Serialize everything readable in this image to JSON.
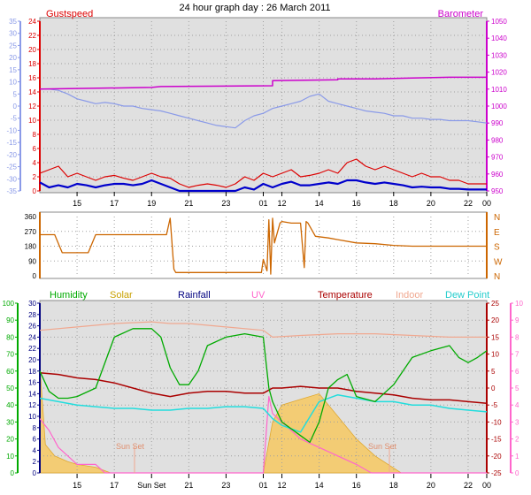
{
  "title": "24 hour graph day : 26 March 2011",
  "colors": {
    "gust": "#dd0000",
    "wind": "#0000cc",
    "baro": "#cc00cc",
    "temp_blue": "#8a9ae8",
    "dir": "#cc6600",
    "humidity": "#00aa00",
    "solar": "#f6c860",
    "rainfall": "#000080",
    "uv": "#ff66cc",
    "temperature": "#aa0000",
    "indoor": "#f0a890",
    "dew": "#22dddd",
    "plot_bg": "#e0e0e0",
    "grid": "#a0a0a0"
  },
  "chart_data": [
    {
      "type": "line",
      "name": "wind-baro-panel",
      "labels": {
        "left": "Gustspeed",
        "right": "Barometer"
      },
      "x_ticks": [
        "15",
        "17",
        "19",
        "21",
        "23",
        "01",
        "12",
        "14",
        "16",
        "18",
        "20",
        "22",
        "00"
      ],
      "y_left_ticks": [
        "0",
        "2",
        "4",
        "6",
        "8",
        "10",
        "12",
        "14",
        "16",
        "18",
        "20",
        "22",
        "24"
      ],
      "y_outer_ticks": [
        "-35",
        "-30",
        "-25",
        "-20",
        "-15",
        "-10",
        "-5",
        "0",
        "5",
        "10",
        "15",
        "20",
        "25",
        "30",
        "35"
      ],
      "y_right_ticks": [
        "950",
        "960",
        "970",
        "980",
        "990",
        "1000",
        "1010",
        "1020",
        "1030",
        "1040",
        "1050"
      ],
      "y_left_range": [
        0,
        25
      ],
      "y_outer_range": [
        -35,
        35
      ],
      "y_right_range": [
        950,
        1050
      ],
      "series": {
        "gust": {
          "x": [
            0,
            0.5,
            1,
            1.5,
            2,
            2.5,
            3,
            3.5,
            4,
            4.5,
            5,
            5.5,
            6,
            6.5,
            7,
            7.5,
            8,
            8.5,
            9,
            9.5,
            10,
            10.5,
            11,
            11.5,
            12,
            12.5,
            13,
            13.5,
            14,
            14.5,
            15,
            15.5,
            16,
            16.5,
            17,
            17.5,
            18,
            18.5,
            19,
            19.5,
            20,
            20.5,
            21,
            21.5,
            22,
            22.5,
            23,
            23.5,
            24
          ],
          "y": [
            2.5,
            3,
            3.5,
            2,
            2.5,
            2,
            1.5,
            2,
            2.2,
            1.8,
            1.5,
            2,
            2.5,
            2,
            1.8,
            1,
            0.5,
            0.8,
            1,
            0.8,
            0.5,
            1,
            2,
            1.5,
            2.5,
            2,
            2.5,
            3,
            2,
            2.2,
            2.5,
            3,
            2.5,
            4,
            4.5,
            3.5,
            3,
            3.5,
            3,
            2.5,
            2,
            2.5,
            2,
            2,
            1.5,
            1.5,
            1,
            1,
            1
          ]
        },
        "wind": {
          "x": [
            0,
            0.5,
            1,
            1.5,
            2,
            2.5,
            3,
            3.5,
            4,
            4.5,
            5,
            5.5,
            6,
            6.5,
            7,
            7.5,
            8,
            8.5,
            9,
            9.5,
            10,
            10.5,
            11,
            11.5,
            12,
            12.5,
            13,
            13.5,
            14,
            14.5,
            15,
            15.5,
            16,
            16.5,
            17,
            17.5,
            18,
            18.5,
            19,
            19.5,
            20,
            20.5,
            21,
            21.5,
            22,
            22.5,
            23,
            23.5,
            24
          ],
          "y": [
            1.2,
            0.5,
            0.8,
            0.5,
            1,
            0.8,
            0.5,
            0.8,
            1,
            1,
            0.8,
            1,
            1.5,
            1,
            0.5,
            0,
            0,
            0,
            0,
            0,
            0,
            0,
            0.5,
            0.2,
            1,
            0.5,
            1,
            1.3,
            0.8,
            0.8,
            1,
            1.2,
            1,
            1.5,
            1.5,
            1.2,
            1,
            1.2,
            1,
            0.8,
            0.5,
            0.6,
            0.5,
            0.5,
            0.3,
            0.3,
            0.2,
            0.2,
            0.2
          ]
        },
        "temperature": {
          "x": [
            0,
            0.5,
            1,
            1.5,
            2,
            2.5,
            3,
            3.5,
            4,
            4.5,
            5,
            5.5,
            6,
            6.5,
            7,
            7.5,
            8,
            8.5,
            9,
            9.5,
            10,
            10.5,
            11,
            11.5,
            12,
            12.5,
            13,
            13.5,
            14,
            14.5,
            15,
            15.5,
            16,
            16.5,
            17,
            17.5,
            18,
            18.5,
            19,
            19.5,
            20,
            20.5,
            21,
            21.5,
            22,
            22.5,
            23,
            23.5,
            24
          ],
          "y": [
            7,
            7,
            6.5,
            5,
            3,
            2,
            1,
            1.5,
            1,
            0,
            0,
            -1,
            -1.5,
            -2,
            -3,
            -4,
            -5,
            -6,
            -7,
            -8,
            -8.5,
            -9,
            -6,
            -4,
            -3,
            -1,
            0,
            1,
            2,
            4,
            5,
            2,
            1,
            0,
            -1,
            -2,
            -2.5,
            -3,
            -4,
            -4,
            -5,
            -5,
            -5.5,
            -5.5,
            -6,
            -6,
            -6,
            -6.5,
            -7
          ]
        },
        "barometer": {
          "x": [
            0,
            6,
            6.5,
            12.5,
            12.5,
            16,
            16,
            18,
            20,
            22,
            24
          ],
          "y": [
            1010,
            1011,
            1011.5,
            1012,
            1015,
            1015.5,
            1016,
            1016,
            1016.5,
            1017,
            1017
          ]
        }
      }
    },
    {
      "type": "line",
      "name": "wind-direction-panel",
      "y_left_ticks": [
        "0",
        "90",
        "180",
        "270",
        "360"
      ],
      "y_right_ticks": [
        "N",
        "W",
        "S",
        "E",
        "N"
      ],
      "y_range": [
        0,
        360
      ],
      "series": {
        "direction": {
          "x": [
            0,
            0.8,
            1.2,
            2.6,
            3,
            3.5,
            3.5,
            4.2,
            6,
            6.8,
            7,
            7.2,
            7.3,
            8,
            9,
            10,
            11,
            11.9,
            12,
            12.2,
            12.3,
            12.4,
            12.5,
            12.6,
            12.9,
            13,
            13.5,
            14,
            14.2,
            14.3,
            14.4,
            14.8,
            15.5,
            16,
            17,
            18,
            19,
            20,
            21,
            22,
            23,
            24
          ],
          "y": [
            250,
            250,
            140,
            140,
            250,
            250,
            250,
            250,
            250,
            250,
            350,
            40,
            20,
            20,
            20,
            20,
            20,
            20,
            100,
            30,
            340,
            10,
            350,
            200,
            320,
            330,
            320,
            320,
            50,
            330,
            320,
            240,
            230,
            220,
            200,
            195,
            185,
            180,
            180,
            180,
            180,
            180
          ]
        }
      }
    },
    {
      "type": "line",
      "name": "weather-panel",
      "labels": {
        "humidity": "Humidity",
        "solar": "Solar",
        "rainfall": "Rainfall",
        "uv": "UV",
        "temperature": "Temperature",
        "indoor": "Indoor",
        "dew": "Dew Point",
        "sunset1": "Sun Set",
        "sunset2": "Sun Set"
      },
      "x_ticks": [
        "15",
        "17",
        "Sun Set",
        "21",
        "23",
        "01",
        "12",
        "14",
        "16",
        "18",
        "20",
        "22",
        "00"
      ],
      "y_humidity_ticks": [
        "0",
        "10",
        "20",
        "30",
        "40",
        "50",
        "60",
        "70",
        "80",
        "90",
        "100"
      ],
      "y_rain_ticks": [
        "0",
        "2",
        "4",
        "6",
        "8",
        "10",
        "12",
        "14",
        "16",
        "18",
        "20",
        "22",
        "24",
        "26",
        "28",
        "30"
      ],
      "y_temp_ticks": [
        "-25",
        "-20",
        "-15",
        "-10",
        "-5",
        "0",
        "5",
        "10",
        "15",
        "20",
        "25"
      ],
      "y_uv_ticks": [
        "0",
        "1",
        "2",
        "3",
        "4",
        "5",
        "6",
        "7",
        "8",
        "9",
        "10"
      ],
      "series": {
        "humidity": {
          "x": [
            0,
            0.5,
            1,
            1.5,
            2,
            3,
            4,
            5,
            6,
            6.5,
            7,
            7.5,
            8,
            8.5,
            9,
            10,
            11,
            12,
            12.3,
            12.5,
            13,
            14,
            14.5,
            15,
            15.5,
            16,
            16.5,
            17,
            18,
            19,
            20,
            21,
            22,
            22.5,
            23,
            23.5,
            24
          ],
          "y": [
            60,
            48,
            44,
            44,
            45,
            50,
            80,
            85,
            85,
            80,
            62,
            52,
            52,
            60,
            75,
            80,
            82,
            80,
            50,
            42,
            30,
            22,
            18,
            30,
            50,
            55,
            58,
            45,
            42,
            52,
            68,
            72,
            75,
            68,
            65,
            68,
            72
          ]
        },
        "temperature": {
          "x": [
            0,
            1,
            2,
            3,
            4,
            5,
            6,
            7,
            8,
            9,
            10,
            11,
            12,
            12.5,
            13,
            14,
            15,
            16,
            17,
            18,
            19,
            20,
            21,
            22,
            23,
            24
          ],
          "y": [
            4.5,
            4,
            3,
            2.5,
            1.5,
            0,
            -1.5,
            -2.5,
            -1.5,
            -1,
            -1,
            -1.5,
            -1.5,
            0,
            0,
            0.5,
            0,
            0,
            -1,
            -1.5,
            -2,
            -3,
            -3.5,
            -3.5,
            -4,
            -4.5
          ]
        },
        "dew": {
          "x": [
            0,
            1,
            2,
            3,
            4,
            5,
            6,
            7,
            8,
            9,
            10,
            11,
            12,
            12.5,
            13,
            14,
            15,
            16,
            17,
            18,
            19,
            20,
            21,
            22,
            23,
            24
          ],
          "y": [
            -3,
            -4,
            -5,
            -5.5,
            -6,
            -6,
            -6.5,
            -6.5,
            -6,
            -6,
            -5.5,
            -5.5,
            -6,
            -9,
            -11,
            -13,
            -4,
            -2,
            -3,
            -4,
            -4,
            -5,
            -5,
            -6,
            -6.5,
            -7
          ]
        },
        "indoor": {
          "x": [
            0,
            2,
            4,
            6,
            7,
            8,
            10,
            12,
            12.5,
            14,
            16,
            18,
            20,
            22,
            24
          ],
          "y": [
            17,
            18,
            19,
            19.5,
            19,
            19,
            18,
            17,
            15,
            15.5,
            16,
            16,
            15.5,
            15,
            15
          ]
        },
        "solar": {
          "x": [
            0,
            0.3,
            0.8,
            1.5,
            2,
            3,
            3.8,
            4,
            12,
            12.5,
            13,
            14,
            15,
            16,
            17,
            18,
            19.4,
            19.5,
            24
          ],
          "y": [
            19,
            5,
            3,
            2,
            1.5,
            1,
            0,
            0,
            0,
            9,
            12,
            13,
            14,
            10,
            6,
            3,
            0,
            0,
            0
          ]
        },
        "uv": {
          "x": [
            0,
            0.5,
            1,
            1.5,
            2,
            3,
            3.5,
            3.6,
            12,
            12.3,
            12.5,
            13,
            14,
            15,
            16,
            17,
            17.8,
            18,
            24
          ],
          "y": [
            3.2,
            2.5,
            1.5,
            1,
            0.5,
            0.5,
            0,
            0,
            0,
            4.5,
            3.5,
            3,
            2,
            1.5,
            1,
            0.5,
            0,
            0,
            0
          ]
        }
      }
    }
  ]
}
